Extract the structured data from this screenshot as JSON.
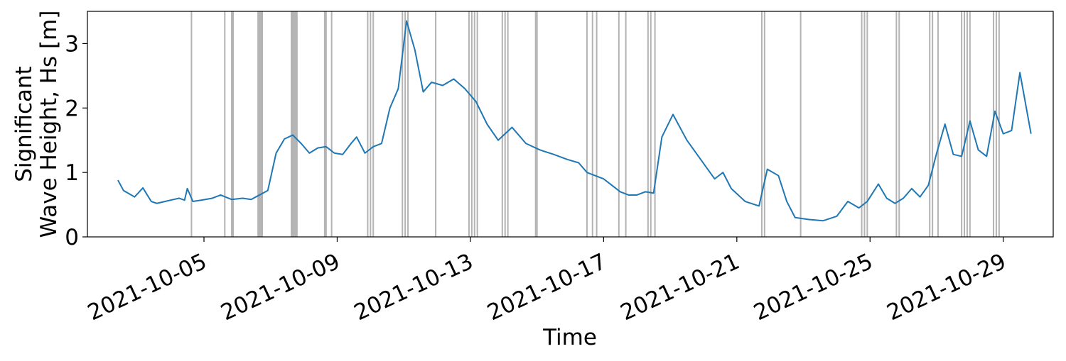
{
  "chart_data": {
    "type": "line",
    "title": "",
    "xlabel": "Time",
    "ylabel_lines": [
      "Significant",
      "Wave Height, Hs [m]"
    ],
    "x_type": "date",
    "xlim": [
      "2021-10-01T12:00",
      "2021-10-30T12:00"
    ],
    "ylim": [
      0,
      3.5
    ],
    "grid": false,
    "legend": "none",
    "x_ticks": [
      "2021-10-05",
      "2021-10-09",
      "2021-10-13",
      "2021-10-17",
      "2021-10-21",
      "2021-10-25",
      "2021-10-29"
    ],
    "y_ticks": [
      0,
      1,
      2,
      3
    ],
    "colors": {
      "series": "#1f77b4",
      "event_lines": "#b3b3b3",
      "axes": "#000000"
    },
    "series": [
      {
        "x": [
          "2021-10-02T10:00",
          "2021-10-02T14:00",
          "2021-10-02T18:00",
          "2021-10-02T22:00",
          "2021-10-03T04:00",
          "2021-10-03T10:00",
          "2021-10-03T14:00",
          "2021-10-03T20:00",
          "2021-10-04T02:00",
          "2021-10-04T06:00",
          "2021-10-04T10:00",
          "2021-10-04T12:00",
          "2021-10-04T16:00",
          "2021-10-04T22:00",
          "2021-10-05T06:00",
          "2021-10-05T12:00",
          "2021-10-05T20:00",
          "2021-10-06T04:00",
          "2021-10-06T10:00",
          "2021-10-06T16:00",
          "2021-10-06T22:00",
          "2021-10-07T04:00",
          "2021-10-07T10:00",
          "2021-10-07T16:00",
          "2021-10-07T22:00",
          "2021-10-08T04:00",
          "2021-10-08T10:00",
          "2021-10-08T16:00",
          "2021-10-08T22:00",
          "2021-10-09T04:00",
          "2021-10-09T10:00",
          "2021-10-09T14:00",
          "2021-10-09T20:00",
          "2021-10-10T02:00",
          "2021-10-10T08:00",
          "2021-10-10T14:00",
          "2021-10-10T20:00",
          "2021-10-11T02:00",
          "2021-10-11T08:00",
          "2021-10-11T14:00",
          "2021-10-11T20:00",
          "2021-10-12T04:00",
          "2021-10-12T12:00",
          "2021-10-12T20:00",
          "2021-10-13T04:00",
          "2021-10-13T12:00",
          "2021-10-13T20:00",
          "2021-10-14T06:00",
          "2021-10-14T16:00",
          "2021-10-15T02:00",
          "2021-10-15T12:00",
          "2021-10-15T22:00",
          "2021-10-16T06:00",
          "2021-10-16T12:00",
          "2021-10-16T18:00",
          "2021-10-17T00:00",
          "2021-10-17T06:00",
          "2021-10-17T12:00",
          "2021-10-17T18:00",
          "2021-10-18T00:00",
          "2021-10-18T06:00",
          "2021-10-18T12:00",
          "2021-10-18T18:00",
          "2021-10-19T02:00",
          "2021-10-19T12:00",
          "2021-10-19T22:00",
          "2021-10-20T08:00",
          "2021-10-20T14:00",
          "2021-10-20T20:00",
          "2021-10-21T06:00",
          "2021-10-21T16:00",
          "2021-10-21T22:00",
          "2021-10-22T06:00",
          "2021-10-22T12:00",
          "2021-10-22T18:00",
          "2021-10-23T04:00",
          "2021-10-23T14:00",
          "2021-10-24T00:00",
          "2021-10-24T08:00",
          "2021-10-24T16:00",
          "2021-10-24T22:00",
          "2021-10-25T06:00",
          "2021-10-25T12:00",
          "2021-10-25T18:00",
          "2021-10-26T00:00",
          "2021-10-26T06:00",
          "2021-10-26T12:00",
          "2021-10-26T18:00",
          "2021-10-27T00:00",
          "2021-10-27T06:00",
          "2021-10-27T12:00",
          "2021-10-27T18:00",
          "2021-10-28T00:00",
          "2021-10-28T06:00",
          "2021-10-28T12:00",
          "2021-10-28T18:00",
          "2021-10-29T00:00",
          "2021-10-29T06:00",
          "2021-10-29T12:00",
          "2021-10-29T20:00"
        ],
        "values": [
          0.88,
          0.72,
          0.67,
          0.62,
          0.76,
          0.55,
          0.52,
          0.55,
          0.58,
          0.6,
          0.57,
          0.75,
          0.55,
          0.57,
          0.6,
          0.65,
          0.58,
          0.6,
          0.58,
          0.65,
          0.72,
          1.3,
          1.52,
          1.58,
          1.45,
          1.3,
          1.38,
          1.4,
          1.3,
          1.28,
          1.45,
          1.55,
          1.3,
          1.4,
          1.45,
          2.0,
          2.3,
          3.35,
          2.9,
          2.25,
          2.4,
          2.35,
          2.45,
          2.3,
          2.1,
          1.75,
          1.5,
          1.7,
          1.45,
          1.35,
          1.28,
          1.2,
          1.15,
          1.0,
          0.95,
          0.9,
          0.8,
          0.7,
          0.65,
          0.65,
          0.7,
          0.68,
          1.55,
          1.9,
          1.5,
          1.2,
          0.9,
          1.0,
          0.75,
          0.55,
          0.48,
          1.05,
          0.95,
          0.55,
          0.3,
          0.27,
          0.25,
          0.32,
          0.55,
          0.45,
          0.55,
          0.82,
          0.6,
          0.52,
          0.6,
          0.75,
          0.62,
          0.8,
          1.3,
          1.75,
          1.28,
          1.25,
          1.8,
          1.35,
          1.25,
          1.95,
          1.6,
          1.65,
          2.55,
          1.6
        ]
      }
    ],
    "event_lines": [
      "2021-10-04T15:00",
      "2021-10-05T15:00",
      "2021-10-05T20:00",
      "2021-10-05T21:00",
      "2021-10-06T15:00",
      "2021-10-06T16:00",
      "2021-10-06T17:00",
      "2021-10-06T18:00",
      "2021-10-07T15:00",
      "2021-10-07T16:00",
      "2021-10-07T17:00",
      "2021-10-07T18:00",
      "2021-10-07T19:00",
      "2021-10-08T15:00",
      "2021-10-08T16:00",
      "2021-10-08T20:00",
      "2021-10-09T22:00",
      "2021-10-10T00:00",
      "2021-10-10T02:00",
      "2021-10-10T23:00",
      "2021-10-11T01:00",
      "2021-10-11T03:00",
      "2021-10-11T23:00",
      "2021-10-12T23:00",
      "2021-10-13T01:00",
      "2021-10-13T03:00",
      "2021-10-13T05:00",
      "2021-10-13T23:00",
      "2021-10-14T01:00",
      "2021-10-14T03:00",
      "2021-10-14T23:00",
      "2021-10-15T00:00",
      "2021-10-16T12:00",
      "2021-10-16T16:00",
      "2021-10-16T19:00",
      "2021-10-17T11:00",
      "2021-10-17T16:00",
      "2021-10-18T08:00",
      "2021-10-18T10:00",
      "2021-10-18T13:00",
      "2021-10-21T18:00",
      "2021-10-21T20:00",
      "2021-10-22T22:00",
      "2021-10-24T18:00",
      "2021-10-24T20:00",
      "2021-10-24T22:00",
      "2021-10-25T19:00",
      "2021-10-25T21:00",
      "2021-10-26T19:00",
      "2021-10-26T21:00",
      "2021-10-27T01:00",
      "2021-10-27T18:00",
      "2021-10-27T20:00",
      "2021-10-27T22:00",
      "2021-10-28T00:00",
      "2021-10-28T17:00",
      "2021-10-28T19:00",
      "2021-10-28T21:00"
    ]
  }
}
